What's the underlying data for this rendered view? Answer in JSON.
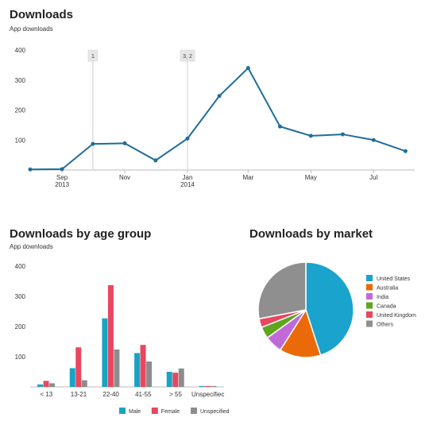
{
  "sections": {
    "downloads": {
      "title": "Downloads",
      "subtitle": "App downloads"
    },
    "age": {
      "title": "Downloads by age group",
      "subtitle": "App downloads"
    },
    "market": {
      "title": "Downloads by market"
    }
  },
  "colors": {
    "line": "#1f6e99",
    "male": "#19a3c4",
    "female": "#e8475f",
    "unspecified": "#8c8c8c",
    "grid": "#dddddd",
    "marker_fill": "#e6e6e6",
    "marker_line": "#cccccc"
  },
  "chart_data": [
    {
      "type": "line",
      "title": "Downloads",
      "subtitle": "App downloads",
      "x_tick_labels": [
        {
          "label": "Sep",
          "sub": "2013",
          "date": "2013-09-01"
        },
        {
          "label": "Nov",
          "sub": "",
          "date": "2013-11-01"
        },
        {
          "label": "Jan",
          "sub": "2014",
          "date": "2014-01-01"
        },
        {
          "label": "Mar",
          "sub": "",
          "date": "2014-03-01"
        },
        {
          "label": "May",
          "sub": "",
          "date": "2014-05-01"
        },
        {
          "label": "Jul",
          "sub": "",
          "date": "2014-07-01"
        }
      ],
      "y_ticks": [
        100,
        200,
        300,
        400
      ],
      "ylim": [
        0,
        400
      ],
      "xlim": [
        "2013-08-01",
        "2014-08-10"
      ],
      "series": [
        {
          "x": [
            "2013-08-01",
            "2013-09-01",
            "2013-10-01",
            "2013-11-01",
            "2013-12-01",
            "2014-01-01",
            "2014-02-01",
            "2014-03-01",
            "2014-04-01",
            "2014-05-01",
            "2014-06-01",
            "2014-07-01",
            "2014-08-01"
          ],
          "y": [
            2,
            3,
            87,
            89,
            32,
            105,
            247,
            340,
            145,
            114,
            119,
            100,
            63
          ]
        }
      ],
      "markers": [
        {
          "label": "1",
          "date": "2013-10-01"
        },
        {
          "label": "3, 2",
          "date": "2014-01-01"
        }
      ]
    },
    {
      "type": "bar",
      "title": "Downloads by age group",
      "subtitle": "App downloads",
      "categories": [
        "< 13",
        "13-21",
        "22-40",
        "41-55",
        "> 55",
        "Unspecifiec"
      ],
      "y_ticks": [
        100,
        200,
        300,
        400
      ],
      "ylim": [
        0,
        400
      ],
      "series": [
        {
          "name": "Male",
          "values": [
            8,
            62,
            227,
            112,
            50,
            3
          ]
        },
        {
          "name": "Female",
          "values": [
            20,
            131,
            337,
            139,
            47,
            3
          ]
        },
        {
          "name": "Unspecified",
          "values": [
            12,
            22,
            124,
            84,
            61,
            3
          ]
        }
      ],
      "legend": "bottom"
    },
    {
      "type": "pie",
      "title": "Downloads by market",
      "slices": [
        {
          "name": "United States",
          "value": 45
        },
        {
          "name": "Australia",
          "value": 14
        },
        {
          "name": "India",
          "value": 6
        },
        {
          "name": "Canada",
          "value": 4
        },
        {
          "name": "United Kingdom",
          "value": 3
        },
        {
          "name": "Others",
          "value": 28
        }
      ],
      "legend": "right"
    }
  ]
}
